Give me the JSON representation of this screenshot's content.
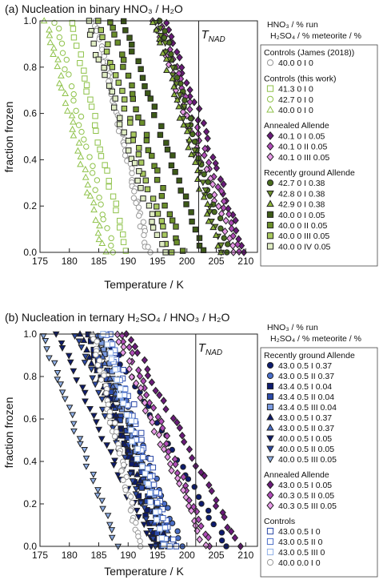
{
  "chart_data": [
    {
      "type": "scatter",
      "title": "(a) Nucleation in binary HNO₃ / H₂O",
      "xlabel": "Temperature / K",
      "ylabel": "fraction frozen",
      "xlim": [
        175,
        212
      ],
      "ylim": [
        0,
        1.0
      ],
      "xticks": [
        "175",
        "180",
        "185",
        "190",
        "195",
        "200",
        "205",
        "210"
      ],
      "yticks": [
        "0.0",
        "0.2",
        "0.4",
        "0.6",
        "0.8",
        "1.0"
      ],
      "vline": {
        "x": 202,
        "label": "T",
        "label_sub": "NAD"
      },
      "legend_headers": {
        "line1": "HNO₃ / %    run",
        "line2": "H₂SO₄ / % meteorite / %"
      },
      "legend_groups": [
        {
          "title": "Controls (James (2018))",
          "entries": [
            {
              "label": "40.0    0       I       0",
              "marker": "circle",
              "fill": "none",
              "stroke": "#999999"
            }
          ]
        },
        {
          "title": "Controls (this work)",
          "entries": [
            {
              "label": "41.3    0       I       0",
              "marker": "square",
              "fill": "none",
              "stroke": "#8fc24a"
            },
            {
              "label": "42.7    0       I       0",
              "marker": "circle",
              "fill": "none",
              "stroke": "#8fc24a"
            },
            {
              "label": "40.0    0       I       0",
              "marker": "triangle-up",
              "fill": "none",
              "stroke": "#8fc24a"
            }
          ]
        },
        {
          "title": "Annealed Allende",
          "entries": [
            {
              "label": "40.1    0       I     0.05",
              "marker": "diamond",
              "fill": "#6a1a7a",
              "stroke": "#222222"
            },
            {
              "label": "40.1    0      II     0.05",
              "marker": "diamond",
              "fill": "#b04cb8",
              "stroke": "#222222"
            },
            {
              "label": "40.1    0     III     0.05",
              "marker": "diamond",
              "fill": "#e89be8",
              "stroke": "#222222"
            }
          ]
        },
        {
          "title": "Recently ground Allende",
          "entries": [
            {
              "label": "42.7    0       I     0.38",
              "marker": "circle",
              "fill": "#4a6e1e",
              "stroke": "#222222"
            },
            {
              "label": "42.8    0       I     0.38",
              "marker": "triangle-down",
              "fill": "#6b8f2a",
              "stroke": "#222222"
            },
            {
              "label": "42.9    0       I     0.38",
              "marker": "triangle-up",
              "fill": "#8fb83a",
              "stroke": "#222222"
            },
            {
              "label": "40.0    0       I     0.05",
              "marker": "square",
              "fill": "#3d5a17",
              "stroke": "#222222"
            },
            {
              "label": "40.0    0      II     0.05",
              "marker": "square",
              "fill": "#6b8f2a",
              "stroke": "#222222"
            },
            {
              "label": "40.0    0     III     0.05",
              "marker": "square",
              "fill": "#a8c95e",
              "stroke": "#222222"
            },
            {
              "label": "40.0    0      IV     0.05",
              "marker": "square",
              "fill": "#e0edc4",
              "stroke": "#222222"
            }
          ]
        }
      ],
      "series": [
        {
          "marker": "circle",
          "fill": "none",
          "stroke": "#999999",
          "t0": 184.5,
          "t1": 193.5,
          "n": 60
        },
        {
          "marker": "square",
          "fill": "none",
          "stroke": "#8fc24a",
          "t0": 180.5,
          "t1": 189.5,
          "n": 30
        },
        {
          "marker": "circle",
          "fill": "none",
          "stroke": "#8fc24a",
          "t0": 177.5,
          "t1": 187.5,
          "n": 30
        },
        {
          "marker": "triangle-up",
          "fill": "none",
          "stroke": "#8fc24a",
          "t0": 176,
          "t1": 186,
          "n": 35
        },
        {
          "marker": "diamond",
          "fill": "#6a1a7a",
          "stroke": "#222222",
          "t0": 196.5,
          "t1": 210,
          "n": 32
        },
        {
          "marker": "diamond",
          "fill": "#b04cb8",
          "stroke": "#222222",
          "t0": 195.5,
          "t1": 209,
          "n": 32
        },
        {
          "marker": "diamond",
          "fill": "#e89be8",
          "stroke": "#222222",
          "t0": 194.5,
          "t1": 208,
          "n": 32
        },
        {
          "marker": "circle",
          "fill": "#4a6e1e",
          "stroke": "#222222",
          "t0": 195.5,
          "t1": 207,
          "n": 30
        },
        {
          "marker": "triangle-down",
          "fill": "#6b8f2a",
          "stroke": "#222222",
          "t0": 195,
          "t1": 206,
          "n": 30
        },
        {
          "marker": "triangle-up",
          "fill": "#8fb83a",
          "stroke": "#222222",
          "t0": 194.5,
          "t1": 205.5,
          "n": 30
        },
        {
          "marker": "square",
          "fill": "#3d5a17",
          "stroke": "#222222",
          "t0": 189,
          "t1": 203,
          "n": 30
        },
        {
          "marker": "square",
          "fill": "#6b8f2a",
          "stroke": "#222222",
          "t0": 187,
          "t1": 199,
          "n": 30
        },
        {
          "marker": "square",
          "fill": "#a8c95e",
          "stroke": "#222222",
          "t0": 185,
          "t1": 197,
          "n": 30
        },
        {
          "marker": "square",
          "fill": "#e0edc4",
          "stroke": "#222222",
          "t0": 183,
          "t1": 196,
          "n": 30
        }
      ]
    },
    {
      "type": "scatter",
      "title": "(b) Nucleation in ternary H₂SO₄ / HNO₃ / H₂O",
      "xlabel": "Temperature / K",
      "ylabel": "fraction frozen",
      "xlim": [
        175,
        212
      ],
      "ylim": [
        0,
        1.0
      ],
      "xticks": [
        "175",
        "180",
        "185",
        "190",
        "195",
        "200",
        "205",
        "210"
      ],
      "yticks": [
        "0.0",
        "0.2",
        "0.4",
        "0.6",
        "0.8",
        "1.0"
      ],
      "vline": {
        "x": 201.5,
        "label": "T",
        "label_sub": "NAD"
      },
      "legend_headers": {
        "line1": "HNO₃ / %  run",
        "line2": "H₂SO₄ / % meteorite / %"
      },
      "legend_groups": [
        {
          "title": "Recently ground Allende",
          "entries": [
            {
              "label": "43.0  0.5    I    0.37",
              "marker": "circle",
              "fill": "#0d1b6e",
              "stroke": "#222222"
            },
            {
              "label": "43.0  0.5   II    0.37",
              "marker": "circle",
              "fill": "#4a6ec8",
              "stroke": "#222222"
            },
            {
              "label": "43.4  0.5    I    0.04",
              "marker": "square",
              "fill": "#0d1b6e",
              "stroke": "#222222"
            },
            {
              "label": "43.4  0.5   II    0.04",
              "marker": "square",
              "fill": "#2c4aa8",
              "stroke": "#222222"
            },
            {
              "label": "43.4  0.5  III    0.04",
              "marker": "square",
              "fill": "#7a9ae0",
              "stroke": "#222222"
            },
            {
              "label": "43.0  0.5    I    0.37",
              "marker": "triangle-up",
              "fill": "#0d1b6e",
              "stroke": "#222222"
            },
            {
              "label": "43.0  0.5   II    0.37",
              "marker": "triangle-up",
              "fill": "#4a6ec8",
              "stroke": "#222222"
            },
            {
              "label": "40.0  0.5    I    0.05",
              "marker": "triangle-down",
              "fill": "#0d1b6e",
              "stroke": "#222222"
            },
            {
              "label": "40.0  0.5   II    0.05",
              "marker": "triangle-down",
              "fill": "#2c4aa8",
              "stroke": "#222222"
            },
            {
              "label": "40.0  0.5  III    0.05",
              "marker": "triangle-down",
              "fill": "#8fb0e8",
              "stroke": "#222222"
            }
          ]
        },
        {
          "title": "Annealed Allende",
          "entries": [
            {
              "label": "43.0  0.5    I    0.05",
              "marker": "diamond",
              "fill": "#6a1a7a",
              "stroke": "#222222"
            },
            {
              "label": "40.3  0.5   II    0.05",
              "marker": "diamond",
              "fill": "#b04cb8",
              "stroke": "#222222"
            },
            {
              "label": "40.3  0.5  III    0.05",
              "marker": "diamond",
              "fill": "#e89be8",
              "stroke": "#222222"
            }
          ]
        },
        {
          "title": "Controls",
          "entries": [
            {
              "label": "43.0  0.5    I     0",
              "marker": "square",
              "fill": "none",
              "stroke": "#2c4aa8"
            },
            {
              "label": "43.0  0.5   II     0",
              "marker": "square",
              "fill": "none",
              "stroke": "#4a6ec8"
            },
            {
              "label": "43.0  0.5  III     0",
              "marker": "square",
              "fill": "none",
              "stroke": "#8fb0e8"
            },
            {
              "label": "40.0  0.0    I     0",
              "marker": "circle",
              "fill": "none",
              "stroke": "#999999"
            }
          ]
        }
      ],
      "series": [
        {
          "marker": "circle",
          "fill": "#0d1b6e",
          "stroke": "#222222",
          "t0": 186,
          "t1": 207,
          "n": 30
        },
        {
          "marker": "circle",
          "fill": "#4a6ec8",
          "stroke": "#222222",
          "t0": 185,
          "t1": 199,
          "n": 30
        },
        {
          "marker": "square",
          "fill": "#0d1b6e",
          "stroke": "#222222",
          "t0": 183,
          "t1": 195,
          "n": 30
        },
        {
          "marker": "square",
          "fill": "#2c4aa8",
          "stroke": "#222222",
          "t0": 184,
          "t1": 196,
          "n": 30
        },
        {
          "marker": "square",
          "fill": "#7a9ae0",
          "stroke": "#222222",
          "t0": 185,
          "t1": 197,
          "n": 30
        },
        {
          "marker": "triangle-up",
          "fill": "#0d1b6e",
          "stroke": "#222222",
          "t0": 182,
          "t1": 197,
          "n": 30
        },
        {
          "marker": "triangle-up",
          "fill": "#4a6ec8",
          "stroke": "#222222",
          "t0": 184,
          "t1": 198,
          "n": 30
        },
        {
          "marker": "triangle-down",
          "fill": "#0d1b6e",
          "stroke": "#222222",
          "t0": 178,
          "t1": 194,
          "n": 30
        },
        {
          "marker": "triangle-down",
          "fill": "#2c4aa8",
          "stroke": "#222222",
          "t0": 181,
          "t1": 195,
          "n": 30
        },
        {
          "marker": "triangle-down",
          "fill": "#8fb0e8",
          "stroke": "#222222",
          "t0": 175.5,
          "t1": 188,
          "n": 30
        },
        {
          "marker": "diamond",
          "fill": "#6a1a7a",
          "stroke": "#222222",
          "t0": 190,
          "t1": 209,
          "n": 32
        },
        {
          "marker": "diamond",
          "fill": "#b04cb8",
          "stroke": "#222222",
          "t0": 189,
          "t1": 204,
          "n": 32
        },
        {
          "marker": "diamond",
          "fill": "#e89be8",
          "stroke": "#222222",
          "t0": 188,
          "t1": 203,
          "n": 32
        },
        {
          "marker": "square",
          "fill": "none",
          "stroke": "#2c4aa8",
          "t0": 187,
          "t1": 198,
          "n": 25
        },
        {
          "marker": "square",
          "fill": "none",
          "stroke": "#4a6ec8",
          "t0": 186.5,
          "t1": 197,
          "n": 25
        },
        {
          "marker": "square",
          "fill": "none",
          "stroke": "#8fb0e8",
          "t0": 186,
          "t1": 196,
          "n": 25
        },
        {
          "marker": "circle",
          "fill": "none",
          "stroke": "#999999",
          "t0": 184,
          "t1": 192,
          "n": 50
        }
      ]
    }
  ]
}
